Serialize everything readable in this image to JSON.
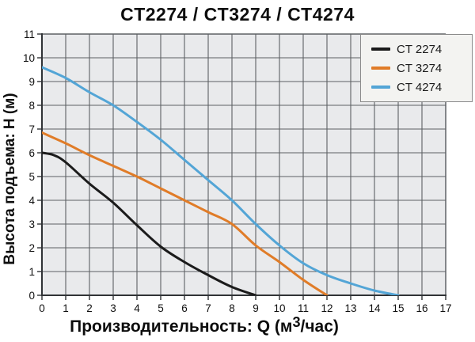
{
  "title": "CT2274 / CT3274 / CT4274",
  "y_axis": {
    "label": "Высота подъема: H (м)"
  },
  "x_axis": {
    "label": "Производительность: Q (м³/час)"
  },
  "chart_data": {
    "type": "line",
    "title": "CT2274 / CT3274 / CT4274",
    "xlabel": "Производительность: Q (м³/час)",
    "xlabel_parts": {
      "prefix": "Производительность: Q (м",
      "sup": "3",
      "suffix": "/час)"
    },
    "ylabel": "Высота подъема: H (м)",
    "xlim": [
      0,
      17
    ],
    "ylim": [
      0,
      11
    ],
    "x_ticks": [
      0,
      1,
      2,
      3,
      4,
      5,
      6,
      7,
      8,
      9,
      10,
      11,
      12,
      13,
      14,
      15,
      16,
      17
    ],
    "y_ticks": [
      0,
      1,
      2,
      3,
      4,
      5,
      6,
      7,
      8,
      9,
      10,
      11
    ],
    "grid": true,
    "legend_position": "top-right-inside",
    "series": [
      {
        "name": "CT 2274",
        "color": "#1b1b1b",
        "points": [
          [
            0,
            6.0
          ],
          [
            0.5,
            5.9
          ],
          [
            1,
            5.6
          ],
          [
            2,
            4.7
          ],
          [
            3,
            3.9
          ],
          [
            4,
            2.95
          ],
          [
            5,
            2.05
          ],
          [
            6,
            1.4
          ],
          [
            7,
            0.85
          ],
          [
            8,
            0.35
          ],
          [
            9,
            0
          ]
        ]
      },
      {
        "name": "CT 3274",
        "color": "#e07c28",
        "points": [
          [
            0,
            6.85
          ],
          [
            1,
            6.4
          ],
          [
            2,
            5.9
          ],
          [
            3,
            5.45
          ],
          [
            4,
            5.0
          ],
          [
            5,
            4.5
          ],
          [
            6,
            4.0
          ],
          [
            7,
            3.5
          ],
          [
            8,
            3.0
          ],
          [
            9,
            2.1
          ],
          [
            10,
            1.4
          ],
          [
            11,
            0.65
          ],
          [
            12,
            0
          ]
        ]
      },
      {
        "name": "CT 4274",
        "color": "#53a5d6",
        "points": [
          [
            0,
            9.6
          ],
          [
            1,
            9.15
          ],
          [
            2,
            8.55
          ],
          [
            3,
            8.0
          ],
          [
            4,
            7.3
          ],
          [
            5,
            6.55
          ],
          [
            6,
            5.7
          ],
          [
            7,
            4.85
          ],
          [
            8,
            4.0
          ],
          [
            9,
            3.0
          ],
          [
            10,
            2.1
          ],
          [
            11,
            1.35
          ],
          [
            12,
            0.85
          ],
          [
            13,
            0.5
          ],
          [
            14,
            0.2
          ],
          [
            15,
            0
          ]
        ]
      }
    ]
  },
  "styles": {
    "plot_bg": "#e9eaec",
    "grid_color": "#5d6064",
    "axis_color": "#303336",
    "frame_color": "#5d6064",
    "tick_color": "#303336",
    "legend_bg": "#f3f3f1",
    "legend_border": "#8b8b8b",
    "text_color": "#111111"
  }
}
